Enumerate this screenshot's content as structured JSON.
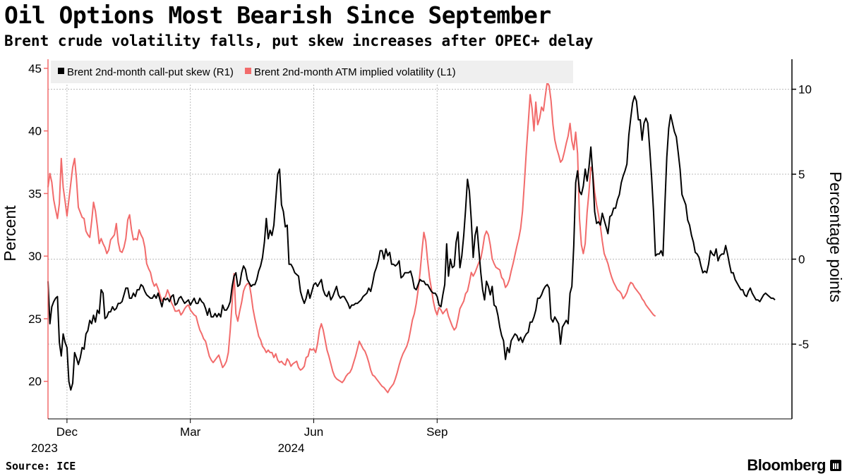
{
  "title": "Oil Options Most Bearish Since September",
  "subtitle": "Brent crude volatility falls, put skew increases after OPEC+ delay",
  "source": "Source: ICE",
  "brand": "Bloomberg",
  "chart_data": {
    "type": "line",
    "ylabel_left": "Percent",
    "ylabel_right": "Percentage points",
    "left_axis": {
      "ticks": [
        20,
        25,
        30,
        35,
        40,
        45
      ],
      "range": [
        17.0,
        45.5
      ],
      "color": "#f26b6b"
    },
    "right_axis": {
      "ticks": [
        -5,
        0,
        5,
        10
      ],
      "range": [
        -9.4,
        11.6
      ],
      "color": "#000000"
    },
    "x_tick_labels": [
      {
        "label": "Dec",
        "year": "2023",
        "index": 10
      },
      {
        "label": "Mar",
        "year": "",
        "index": 75
      },
      {
        "label": "Jun",
        "year": "2024",
        "index": 140
      },
      {
        "label": "Sep",
        "year": "",
        "index": 205
      }
    ],
    "grid": true,
    "legend_position": "top-left",
    "series": [
      {
        "name": "Brent 2nd-month call-put skew (R1)",
        "axis": "right",
        "color": "#000000",
        "values": [
          -1.3,
          -3.8,
          -2.8,
          -2.5,
          -2.3,
          -2.2,
          -4.9,
          -5.7,
          -4.4,
          -4.9,
          -5.2,
          -7.2,
          -7.7,
          -7.3,
          -5.5,
          -5.8,
          -6.2,
          -5.8,
          -5.2,
          -5.3,
          -4.4,
          -4.2,
          -3.6,
          -3.8,
          -3.3,
          -3.7,
          -3.0,
          -3.2,
          -1.8,
          -2.0,
          -3.5,
          -3.4,
          -3.1,
          -3.1,
          -2.8,
          -3.0,
          -2.9,
          -2.6,
          -2.6,
          -2.5,
          -2.1,
          -1.7,
          -1.7,
          -2.3,
          -2.3,
          -2.0,
          -2.2,
          -1.8,
          -1.8,
          -1.5,
          -1.6,
          -1.9,
          -2.1,
          -2.2,
          -2.3,
          -2.3,
          -2.1,
          -2.3,
          -2.0,
          -2.4,
          -2.8,
          -2.3,
          -2.4,
          -2.3,
          -2.5,
          -2.2,
          -2.1,
          -2.7,
          -2.6,
          -2.3,
          -2.2,
          -2.4,
          -2.6,
          -2.5,
          -2.4,
          -2.7,
          -2.5,
          -2.3,
          -2.6,
          -2.6,
          -2.3,
          -2.5,
          -2.6,
          -2.9,
          -3.3,
          -2.9,
          -3.4,
          -3.4,
          -3.2,
          -3.4,
          -3.2,
          -3.4,
          -2.7,
          -3.0,
          -3.0,
          -2.8,
          -2.5,
          -1.6,
          -1.0,
          -0.8,
          -1.6,
          -1.5,
          -0.8,
          -0.4,
          -0.6,
          -1.2,
          -1.4,
          -1.6,
          -1.5,
          -1.5,
          -1.2,
          -0.7,
          -0.4,
          0.1,
          1.0,
          2.4,
          1.2,
          1.7,
          1.4,
          2.0,
          3.5,
          5.0,
          5.3,
          3.2,
          2.8,
          1.9,
          2.0,
          -0.3,
          -0.3,
          -0.5,
          -0.8,
          -0.9,
          -1.0,
          -1.9,
          -2.3,
          -2.6,
          -2.3,
          -1.8,
          -2.3,
          -1.9,
          -1.5,
          -1.4,
          -1.6,
          -1.4,
          -1.2,
          -1.8,
          -2.1,
          -2.2,
          -1.9,
          -2.4,
          -2.2,
          -1.9,
          -1.6,
          -2.1,
          -2.3,
          -2.2,
          -2.2,
          -2.4,
          -2.6,
          -2.9,
          -2.7,
          -2.7,
          -2.6,
          -2.6,
          -2.5,
          -2.4,
          -2.2,
          -2.1,
          -2.0,
          -1.7,
          -1.9,
          -1.4,
          -0.8,
          -0.5,
          -0.1,
          0.5,
          0.5,
          0.0,
          0.6,
          0.2,
          0.4,
          -0.3,
          -0.3,
          -0.4,
          -0.3,
          -0.1,
          -1.1,
          -1.0,
          -0.8,
          -0.8,
          -0.8,
          -0.7,
          -1.1,
          -1.7,
          -1.8,
          -1.5,
          -1.2,
          -1.3,
          -1.3,
          -1.5,
          -1.5,
          -1.7,
          -1.9,
          -2.0,
          -2.0,
          -2.2,
          -2.7,
          -2.8,
          -2.1,
          -1.5,
          0.9,
          -1.0,
          0.0,
          -0.5,
          -0.4,
          1.0,
          1.6,
          -0.5,
          0.2,
          1.4,
          2.9,
          4.7,
          4.0,
          2.3,
          0.1,
          1.4,
          1.9,
          0.5,
          -0.8,
          -1.8,
          -2.4,
          -1.3,
          -1.6,
          -2.1,
          -1.6,
          -2.7,
          -2.8,
          -3.3,
          -4.0,
          -4.5,
          -4.8,
          -5.9,
          -5.2,
          -5.5,
          -4.8,
          -4.6,
          -4.4,
          -4.5,
          -4.8,
          -4.6,
          -4.9,
          -4.6,
          -4.4,
          -4.3,
          -3.7,
          -3.7,
          -3.4,
          -3.0,
          -2.3,
          -2.3,
          -2.1,
          -1.8,
          -1.6,
          -1.5,
          -1.7,
          -3.5,
          -3.7,
          -3.4,
          -3.6,
          -3.8,
          -5.0,
          -4.0,
          -3.8,
          -3.6,
          -3.8,
          -2.0,
          -1.6,
          0.8,
          4.5,
          5.2,
          4.0,
          3.8,
          4.3,
          5.3,
          4.6,
          5.4,
          6.6,
          5.0,
          2.8,
          2.1,
          2.2,
          2.0,
          2.7,
          2.3,
          1.9,
          1.5,
          2.5,
          2.6,
          3.0,
          3.0,
          3.5,
          3.8,
          4.5,
          4.9,
          5.2,
          5.6,
          7.3,
          8.3,
          9.2,
          9.6,
          9.3,
          8.2,
          8.2,
          7.0,
          8.0,
          8.3,
          8.0,
          6.5,
          4.8,
          2.8,
          0.2,
          0.3,
          0.3,
          0.5,
          0.2,
          3.2,
          6.0,
          7.7,
          8.5,
          8.0,
          7.5,
          7.2,
          6.3,
          5.3,
          3.8,
          3.5,
          3.2,
          2.3,
          2.0,
          1.4,
          1.0,
          0.4,
          0.3,
          0.1,
          -0.4,
          -0.8,
          -0.7,
          -0.8,
          -0.3,
          0.5,
          0.3,
          0.2,
          0.6,
          -0.1,
          0.2,
          0.3,
          0.3,
          0.8,
          0.3,
          -0.3,
          -0.8,
          -0.8,
          -1.2,
          -1.4,
          -1.6,
          -1.8,
          -1.8,
          -2.1,
          -2.2,
          -1.9,
          -1.7,
          -2.0,
          -2.2,
          -2.4,
          -2.4,
          -2.5,
          -2.3,
          -2.1,
          -2.0,
          -2.1,
          -2.2,
          -2.3,
          -2.3,
          -2.4
        ]
      },
      {
        "name": "Brent 2nd-month ATM implied volatility (L1)",
        "axis": "left",
        "color": "#f26b6b",
        "values": [
          35.5,
          36.6,
          35.9,
          34.5,
          33.7,
          33.0,
          34.2,
          37.8,
          35.5,
          34.4,
          33.2,
          34.5,
          35.8,
          37.1,
          37.8,
          36.2,
          33.9,
          33.5,
          33.1,
          33.0,
          32.0,
          31.7,
          31.5,
          32.8,
          34.3,
          33.6,
          32.4,
          31.0,
          31.4,
          31.0,
          30.7,
          30.2,
          30.5,
          31.3,
          31.5,
          31.7,
          32.6,
          31.1,
          30.4,
          30.3,
          30.7,
          31.4,
          32.9,
          33.3,
          32.1,
          31.3,
          31.4,
          31.3,
          32.1,
          31.7,
          31.4,
          30.7,
          29.4,
          29.0,
          28.7,
          28.0,
          27.6,
          27.8,
          27.4,
          26.9,
          26.4,
          26.6,
          26.8,
          27.3,
          26.9,
          26.3,
          26.0,
          25.6,
          25.6,
          25.7,
          25.3,
          25.5,
          25.8,
          26.0,
          26.1,
          25.7,
          25.5,
          25.3,
          25.2,
          24.6,
          24.1,
          23.8,
          23.4,
          23.2,
          22.6,
          22.0,
          21.7,
          21.5,
          21.7,
          21.9,
          22.1,
          21.6,
          21.1,
          21.3,
          21.6,
          22.3,
          24.1,
          26.3,
          28.6,
          25.4,
          24.8,
          25.6,
          26.3,
          27.2,
          27.6,
          27.8,
          27.8,
          26.9,
          25.8,
          25.0,
          24.3,
          23.6,
          23.3,
          22.8,
          22.6,
          22.3,
          22.5,
          22.3,
          22.3,
          21.9,
          22.2,
          21.7,
          21.5,
          21.6,
          21.4,
          21.3,
          21.8,
          21.6,
          21.2,
          21.4,
          21.5,
          21.6,
          21.1,
          20.9,
          21.0,
          21.2,
          21.9,
          22.0,
          22.6,
          22.5,
          22.6,
          22.3,
          23.0,
          24.1,
          24.6,
          24.1,
          23.3,
          22.5,
          22.0,
          21.4,
          20.8,
          20.4,
          20.2,
          20.1,
          20.0,
          19.9,
          20.1,
          20.4,
          20.6,
          20.7,
          21.0,
          21.5,
          22.0,
          22.6,
          23.2,
          22.9,
          22.6,
          22.4,
          22.0,
          21.5,
          20.9,
          20.5,
          20.4,
          20.2,
          20.0,
          19.8,
          19.6,
          19.5,
          19.3,
          19.1,
          19.4,
          19.6,
          19.8,
          20.2,
          20.7,
          21.3,
          21.8,
          22.2,
          22.5,
          22.8,
          23.3,
          24.1,
          24.9,
          25.4,
          26.2,
          27.3,
          28.7,
          30.4,
          31.9,
          31.2,
          29.6,
          28.3,
          27.4,
          26.4,
          25.7,
          25.3,
          25.9,
          25.7,
          25.4,
          25.6,
          25.8,
          25.2,
          24.8,
          24.4,
          24.1,
          24.3,
          25.0,
          25.8,
          26.1,
          26.4,
          27.0,
          27.2,
          27.9,
          28.7,
          28.4,
          28.7,
          29.1,
          29.5,
          29.8,
          30.6,
          31.6,
          32.0,
          31.7,
          30.9,
          29.8,
          29.4,
          29.1,
          29.0,
          28.9,
          28.3,
          28.1,
          27.5,
          27.7,
          28.1,
          28.8,
          29.4,
          30.1,
          30.8,
          31.4,
          32.2,
          33.6,
          35.9,
          38.4,
          40.6,
          42.9,
          41.8,
          40.0,
          42.3,
          40.5,
          41.0,
          41.9,
          41.6,
          42.8,
          43.9,
          43.6,
          42.4,
          40.5,
          39.3,
          38.6,
          38.1,
          37.5,
          37.7,
          38.3,
          39.0,
          39.6,
          40.6,
          39.2,
          38.5,
          39.9,
          38.2,
          33.0,
          30.9,
          30.2,
          31.0,
          33.5,
          35.1,
          37.1,
          36.7,
          35.1,
          34.1,
          33.3,
          32.4,
          31.2,
          30.2,
          29.8,
          29.4,
          28.8,
          28.3,
          27.9,
          27.6,
          27.3,
          27.2,
          27.0,
          26.6,
          26.8,
          27.1,
          27.6,
          27.9,
          27.8,
          27.5,
          27.3,
          27.1,
          26.9,
          26.6,
          26.4,
          26.1,
          25.9,
          25.7,
          25.5,
          25.3,
          25.2
        ]
      }
    ]
  }
}
